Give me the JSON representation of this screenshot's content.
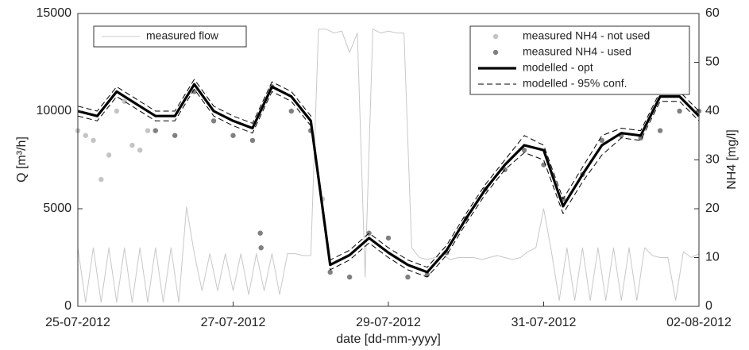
{
  "chart_data": {
    "type": "line",
    "xlabel": "date [dd-mm-yyyy]",
    "ylabel": "Q [m³/h]",
    "y2label": "NH4 [mg/l]",
    "xlim": [
      0,
      8
    ],
    "ylim": [
      0,
      15000
    ],
    "y2lim": [
      0,
      60
    ],
    "xticks": [
      {
        "value": 0,
        "label": "25-07-2012"
      },
      {
        "value": 2,
        "label": "27-07-2012"
      },
      {
        "value": 4,
        "label": "29-07-2012"
      },
      {
        "value": 6,
        "label": "31-07-2012"
      },
      {
        "value": 8,
        "label": "02-08-2012"
      }
    ],
    "yticks": [
      0,
      5000,
      10000,
      15000
    ],
    "y2ticks": [
      0,
      10,
      20,
      30,
      40,
      50,
      60
    ],
    "legend": {
      "y": "upper left",
      "y2": "upper right"
    },
    "series": [
      {
        "name": "measured flow",
        "color": "#c8c8c8",
        "style": "line",
        "axis": "y",
        "x": [
          0,
          0.1,
          0.2,
          0.3,
          0.4,
          0.5,
          0.6,
          0.7,
          0.8,
          0.9,
          1,
          1.1,
          1.2,
          1.3,
          1.4,
          1.5,
          1.6,
          1.7,
          1.8,
          1.9,
          2,
          2.1,
          2.2,
          2.3,
          2.4,
          2.5,
          2.6,
          2.7,
          2.8,
          2.9,
          3,
          3.1,
          3.2,
          3.3,
          3.4,
          3.5,
          3.6,
          3.7,
          3.8,
          3.9,
          4,
          4.1,
          4.2,
          4.3,
          4.4,
          4.5,
          4.6,
          4.7,
          4.8,
          4.9,
          5,
          5.1,
          5.2,
          5.3,
          5.4,
          5.5,
          5.6,
          5.7,
          5.8,
          5.9,
          6,
          6.1,
          6.2,
          6.3,
          6.4,
          6.5,
          6.6,
          6.7,
          6.8,
          6.9,
          7,
          7.1,
          7.2,
          7.3,
          7.4,
          7.5,
          7.6,
          7.7,
          7.8,
          7.9,
          8
        ],
        "values": [
          3000,
          200,
          3000,
          200,
          3000,
          200,
          3000,
          200,
          3000,
          200,
          3000,
          200,
          3000,
          200,
          5100,
          2700,
          800,
          2700,
          800,
          2700,
          800,
          2700,
          600,
          2700,
          800,
          2700,
          600,
          2700,
          2700,
          2600,
          2600,
          14200,
          14200,
          14000,
          14100,
          13000,
          14000,
          1500,
          14200,
          14000,
          14100,
          14000,
          14000,
          3000,
          2500,
          2400,
          2500,
          2600,
          2400,
          2500,
          2500,
          2500,
          2400,
          2500,
          2600,
          2500,
          2400,
          2500,
          2800,
          3000,
          5000,
          2800,
          300,
          3000,
          300,
          3000,
          300,
          3000,
          300,
          3000,
          300,
          3000,
          300,
          3000,
          2600,
          2500,
          2500,
          300,
          2800,
          2500,
          2700
        ]
      },
      {
        "name": "measured NH4 - not used",
        "color": "#c4c4c4",
        "style": "scatter",
        "axis": "y2",
        "x": [
          0,
          0.1,
          0.2,
          0.3,
          0.4,
          0.5,
          0.6,
          0.7,
          0.8,
          0.9,
          1,
          3.15
        ],
        "values": [
          36,
          35,
          34,
          26,
          31,
          40,
          42,
          33,
          32,
          36,
          36,
          22
        ]
      },
      {
        "name": "measured NH4 - used",
        "color": "#808080",
        "style": "scatter",
        "axis": "y2",
        "x": [
          1,
          1.25,
          1.5,
          1.75,
          2,
          2.25,
          2.35,
          2.36,
          2.5,
          2.75,
          3,
          3.25,
          3.5,
          3.75,
          4,
          4.25,
          4.5,
          4.75,
          5,
          5.25,
          5.5,
          5.75,
          6,
          6.25,
          6.5,
          6.75,
          7,
          7.25,
          7.5,
          7.75,
          8
        ],
        "values": [
          36,
          35,
          44,
          38,
          35,
          34,
          15,
          12,
          45,
          40,
          36,
          7,
          6,
          15,
          14,
          6,
          6.5,
          11,
          18,
          24,
          28,
          32,
          29,
          22,
          27,
          34,
          35,
          34.5,
          36,
          40,
          40
        ]
      },
      {
        "name": "modelled - opt",
        "color": "#000000",
        "style": "thick",
        "axis": "y2",
        "x": [
          0,
          0.25,
          0.5,
          0.75,
          1,
          1.25,
          1.5,
          1.75,
          2,
          2.25,
          2.5,
          2.75,
          3,
          3.25,
          3.5,
          3.75,
          4,
          4.25,
          4.5,
          4.75,
          5,
          5.25,
          5.5,
          5.75,
          6,
          6.25,
          6.5,
          6.75,
          7,
          7.25,
          7.5,
          7.75,
          8
        ],
        "values": [
          40,
          39,
          44,
          41.5,
          39,
          39,
          45.5,
          40,
          38,
          36.5,
          45,
          43,
          38,
          8.5,
          10.5,
          14,
          11,
          8.5,
          7,
          11.5,
          18,
          24,
          29,
          33,
          32,
          20.5,
          27,
          33,
          35.5,
          35,
          43,
          43,
          39
        ]
      },
      {
        "name": "modelled - 95% conf.",
        "color": "#000000",
        "style": "dashed",
        "axis": "y2",
        "x": [
          0,
          0.25,
          0.5,
          0.75,
          1,
          1.25,
          1.5,
          1.75,
          2,
          2.25,
          2.5,
          2.75,
          3,
          3.25,
          3.5,
          3.75,
          4,
          4.25,
          4.5,
          4.75,
          5,
          5.25,
          5.5,
          5.75,
          6,
          6.25,
          6.5,
          6.75,
          7,
          7.25,
          7.5,
          7.75,
          8
        ],
        "values": [
          41,
          40,
          45,
          42.5,
          40,
          40,
          46.5,
          41,
          39,
          37.5,
          46,
          44,
          39,
          9.5,
          11.5,
          15,
          12,
          9.5,
          8,
          12.5,
          19,
          25,
          30,
          35,
          33,
          22,
          28.5,
          35,
          36.5,
          36,
          44,
          44,
          40
        ],
        "lower": [
          39,
          38,
          43,
          40.5,
          38,
          38,
          44.5,
          39,
          37,
          35.5,
          44,
          42,
          37,
          7.5,
          9.5,
          13,
          10,
          7.5,
          6,
          10.5,
          17,
          23,
          28,
          31.5,
          30,
          19,
          25.5,
          31,
          34.5,
          34,
          42,
          42,
          38
        ]
      }
    ]
  }
}
